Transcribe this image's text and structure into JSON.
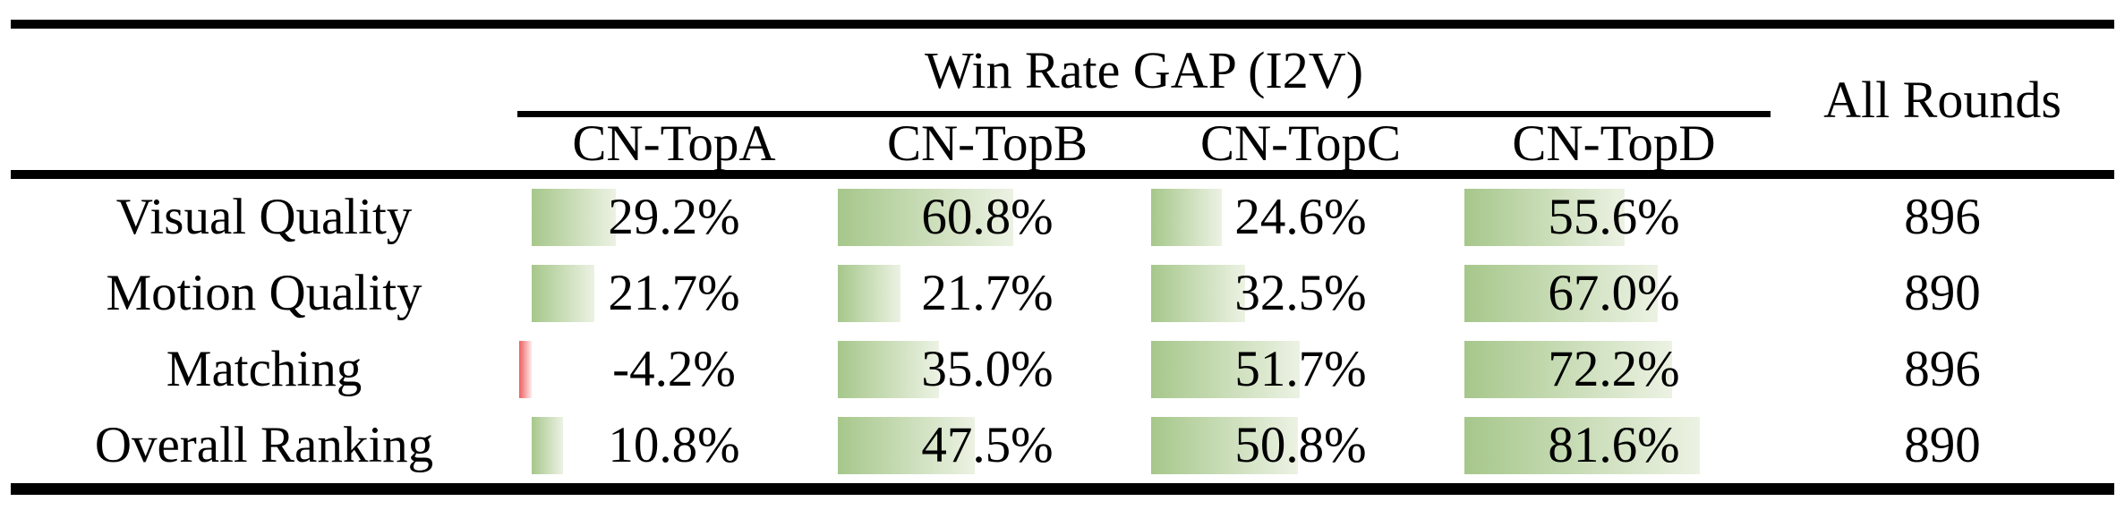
{
  "header": {
    "group_header": "Win Rate GAP (I2V)",
    "all_rounds": "All Rounds",
    "columns": [
      "CN-TopA",
      "CN-TopB",
      "CN-TopC",
      "CN-TopD"
    ]
  },
  "rows": [
    {
      "label": "Visual Quality",
      "cells": [
        {
          "text": "29.2%",
          "value": 29.2
        },
        {
          "text": "60.8%",
          "value": 60.8
        },
        {
          "text": "24.6%",
          "value": 24.6
        },
        {
          "text": "55.6%",
          "value": 55.6
        }
      ],
      "all_rounds": "896"
    },
    {
      "label": "Motion Quality",
      "cells": [
        {
          "text": "21.7%",
          "value": 21.7
        },
        {
          "text": "21.7%",
          "value": 21.7
        },
        {
          "text": "32.5%",
          "value": 32.5
        },
        {
          "text": "67.0%",
          "value": 67.0
        }
      ],
      "all_rounds": "890"
    },
    {
      "label": "Matching",
      "cells": [
        {
          "text": "-4.2%",
          "value": -4.2
        },
        {
          "text": "35.0%",
          "value": 35.0
        },
        {
          "text": "51.7%",
          "value": 51.7
        },
        {
          "text": "72.2%",
          "value": 72.2
        }
      ],
      "all_rounds": "896"
    },
    {
      "label": "Overall Ranking",
      "cells": [
        {
          "text": "10.8%",
          "value": 10.8
        },
        {
          "text": "47.5%",
          "value": 47.5
        },
        {
          "text": "50.8%",
          "value": 50.8
        },
        {
          "text": "81.6%",
          "value": 81.6
        }
      ],
      "all_rounds": "890"
    }
  ],
  "colors": {
    "bar_positive": "#a6c78b",
    "bar_positive_fade": "#ecf2e3",
    "bar_negative": "#ef5f5f",
    "bar_negative_fade": "#fdecec",
    "rule": "#000000",
    "text": "#000000",
    "background": "#ffffff"
  },
  "chart_data": {
    "type": "table",
    "title": "Win Rate GAP (I2V)",
    "row_header": [
      "Visual Quality",
      "Motion Quality",
      "Matching",
      "Overall Ranking"
    ],
    "categories": [
      "CN-TopA",
      "CN-TopB",
      "CN-TopC",
      "CN-TopD"
    ],
    "series": [
      {
        "name": "Visual Quality",
        "values": [
          29.2,
          60.8,
          24.6,
          55.6
        ],
        "all_rounds": 896
      },
      {
        "name": "Motion Quality",
        "values": [
          21.7,
          21.7,
          32.5,
          67.0
        ],
        "all_rounds": 890
      },
      {
        "name": "Matching",
        "values": [
          -4.2,
          35.0,
          51.7,
          72.2
        ],
        "all_rounds": 896
      },
      {
        "name": "Overall Ranking",
        "values": [
          10.8,
          47.5,
          50.8,
          81.6
        ],
        "all_rounds": 890
      }
    ],
    "units": "percent",
    "extra_column": {
      "label": "All Rounds",
      "values": [
        896,
        890,
        896,
        890
      ]
    },
    "bars": "in-cell data bars, green gradient for positive, red for negative, length proportional to value"
  }
}
